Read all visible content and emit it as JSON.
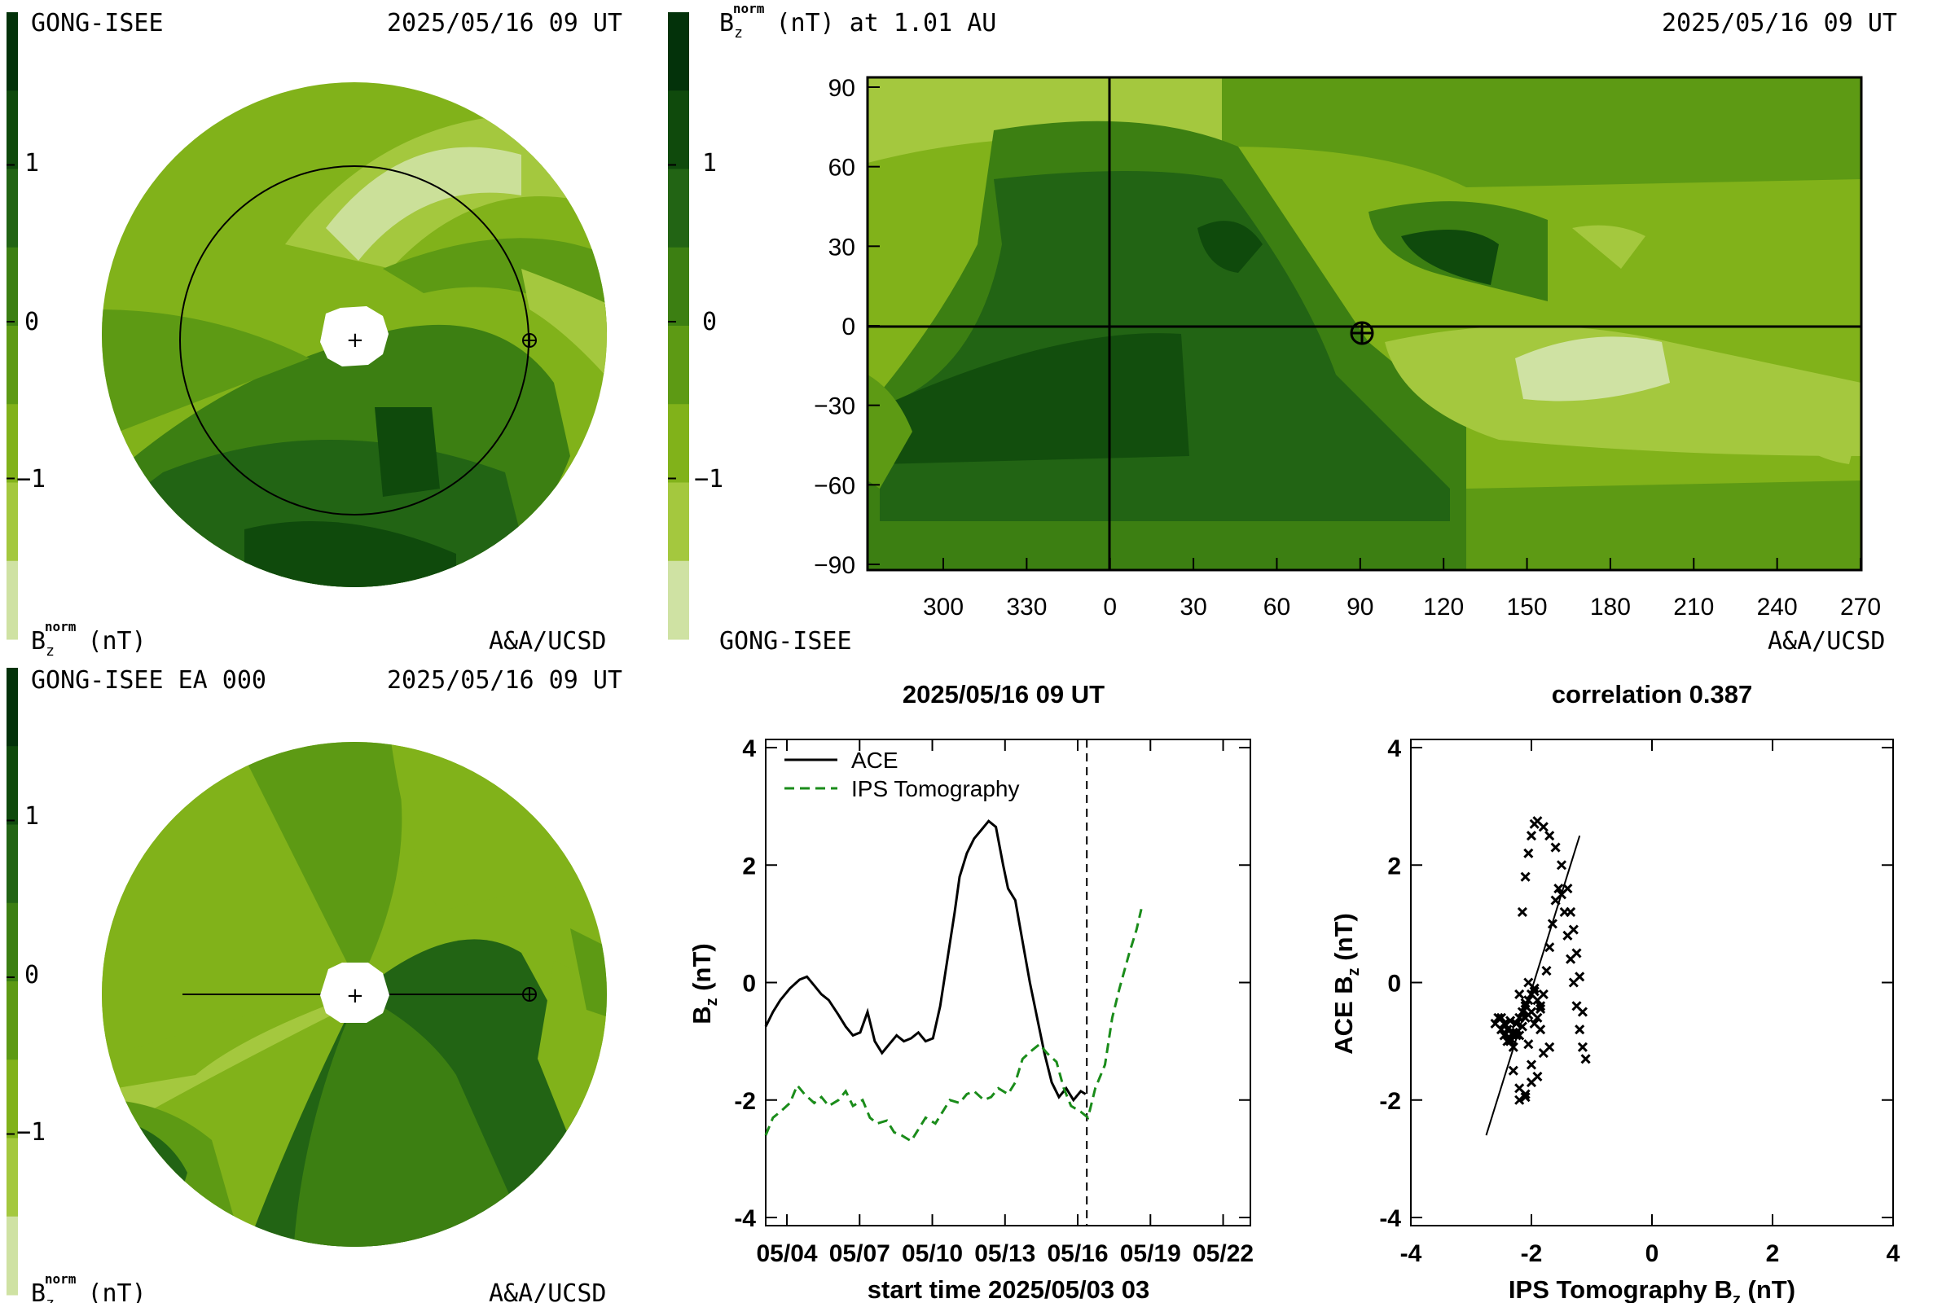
{
  "colors": {
    "c0": "#cfe2a3",
    "c1": "#a4c83e",
    "c2": "#81b21a",
    "c3": "#5d9a14",
    "c4": "#3c7f12",
    "c5": "#226414",
    "c6": "#0f4a0c",
    "c7": "#03320a",
    "ace": "#000000",
    "ips": "#1a8c1a"
  },
  "panel_tl": {
    "source": "GONG-ISEE",
    "timestamp": "2025/05/16 09 UT",
    "colorbar_label_base": "B",
    "colorbar_label_sub": "z",
    "colorbar_label_sup": "norm",
    "colorbar_label_unit": "(nT)",
    "credit": "A&A/UCSD",
    "ticks": [
      "1",
      "0",
      "−1"
    ]
  },
  "panel_tr": {
    "title_base": "B",
    "title_sub": "z",
    "title_sup": "norm",
    "title_rest": "(nT) at 1.01 AU",
    "timestamp": "2025/05/16 09 UT",
    "source": "GONG-ISEE",
    "credit": "A&A/UCSD",
    "colorbar_ticks": [
      "1",
      "0",
      "−1"
    ],
    "yticks": [
      "90",
      "60",
      "30",
      "0",
      "−30",
      "−60",
      "−90"
    ],
    "xticks": [
      "300",
      "330",
      "0",
      "30",
      "60",
      "90",
      "120",
      "150",
      "180",
      "210",
      "240",
      "270"
    ]
  },
  "panel_bl": {
    "source": "GONG-ISEE EA 000",
    "timestamp": "2025/05/16 09 UT",
    "colorbar_label_base": "B",
    "colorbar_label_sub": "z",
    "colorbar_label_sup": "norm",
    "colorbar_label_unit": "(nT)",
    "credit": "A&A/UCSD",
    "ticks": [
      "1",
      "0",
      "−1"
    ]
  },
  "chart_data": [
    {
      "type": "line",
      "title": "2025/05/16 09 UT",
      "xlabel": "start time 2025/05/03 03",
      "ylabel_base": "B",
      "ylabel_sub": "z",
      "ylabel_rest": " (nT)",
      "xlim": [
        0,
        20
      ],
      "ylim": [
        -4,
        4
      ],
      "xticks": [
        "05/04",
        "05/07",
        "05/10",
        "05/13",
        "05/16",
        "05/19",
        "05/22"
      ],
      "xtick_values": [
        0.875,
        3.875,
        6.875,
        9.875,
        12.875,
        15.875,
        18.875
      ],
      "yticks": [
        -4,
        -2,
        0,
        2,
        4
      ],
      "current_time_marker": 13.25,
      "series": [
        {
          "name": "ACE",
          "style": "solid",
          "x": [
            0.0,
            0.3,
            0.6,
            1.0,
            1.4,
            1.7,
            2.0,
            2.3,
            2.6,
            3.0,
            3.3,
            3.6,
            3.9,
            4.2,
            4.5,
            4.8,
            5.1,
            5.4,
            5.7,
            6.0,
            6.3,
            6.6,
            6.9,
            7.2,
            7.5,
            7.8,
            8.0,
            8.3,
            8.6,
            8.9,
            9.2,
            9.5,
            9.8,
            10.0,
            10.3,
            10.6,
            10.9,
            11.2,
            11.5,
            11.8,
            12.1,
            12.4,
            12.7,
            13.0,
            13.2
          ],
          "y": [
            -0.75,
            -0.5,
            -0.3,
            -0.1,
            0.05,
            0.1,
            -0.05,
            -0.2,
            -0.3,
            -0.55,
            -0.75,
            -0.9,
            -0.85,
            -0.5,
            -1.0,
            -1.2,
            -1.05,
            -0.9,
            -1.0,
            -0.95,
            -0.85,
            -1.0,
            -0.95,
            -0.4,
            0.4,
            1.2,
            1.8,
            2.2,
            2.45,
            2.6,
            2.75,
            2.65,
            2.0,
            1.6,
            1.4,
            0.7,
            0.0,
            -0.6,
            -1.2,
            -1.7,
            -1.95,
            -1.8,
            -2.0,
            -1.85,
            -1.9
          ]
        },
        {
          "name": "IPS Tomography",
          "style": "dashed",
          "x": [
            0.0,
            0.3,
            0.6,
            1.0,
            1.3,
            1.6,
            2.0,
            2.3,
            2.6,
            3.0,
            3.3,
            3.6,
            4.0,
            4.3,
            4.6,
            5.0,
            5.3,
            5.6,
            6.0,
            6.3,
            6.6,
            7.0,
            7.3,
            7.6,
            8.0,
            8.3,
            8.6,
            9.0,
            9.3,
            9.6,
            10.0,
            10.3,
            10.6,
            11.0,
            11.3,
            11.6,
            12.0,
            12.3,
            12.6,
            13.0,
            13.3,
            13.6,
            14.0,
            14.3,
            14.6,
            15.0,
            15.3,
            15.5
          ],
          "y": [
            -2.6,
            -2.3,
            -2.2,
            -2.05,
            -1.75,
            -1.9,
            -2.05,
            -1.95,
            -2.1,
            -2.0,
            -1.85,
            -2.1,
            -2.0,
            -2.3,
            -2.4,
            -2.35,
            -2.55,
            -2.6,
            -2.7,
            -2.5,
            -2.3,
            -2.4,
            -2.2,
            -2.0,
            -2.05,
            -1.9,
            -1.85,
            -2.0,
            -1.95,
            -1.8,
            -1.9,
            -1.7,
            -1.3,
            -1.15,
            -1.05,
            -1.2,
            -1.35,
            -1.8,
            -2.1,
            -2.2,
            -2.3,
            -1.8,
            -1.4,
            -0.6,
            -0.1,
            0.5,
            0.9,
            1.25
          ]
        }
      ]
    },
    {
      "type": "scatter",
      "title": "correlation 0.387",
      "xlabel_base": "IPS Tomography B",
      "xlabel_sub": "z",
      "xlabel_rest": " (nT)",
      "ylabel_base": "ACE B",
      "ylabel_sub": "z",
      "ylabel_rest": " (nT)",
      "xlim": [
        -4,
        4
      ],
      "ylim": [
        -4,
        4
      ],
      "xticks": [
        -4,
        -2,
        0,
        2,
        4
      ],
      "yticks": [
        -4,
        -2,
        0,
        2,
        4
      ],
      "fit_line": {
        "x": [
          -2.75,
          -1.2
        ],
        "y": [
          -2.6,
          2.5
        ]
      },
      "points": {
        "x": [
          -2.6,
          -2.55,
          -2.5,
          -2.45,
          -2.4,
          -2.35,
          -2.3,
          -2.25,
          -2.2,
          -2.15,
          -2.1,
          -2.05,
          -2.0,
          -1.95,
          -1.9,
          -1.85,
          -1.8,
          -1.75,
          -1.7,
          -1.65,
          -1.6,
          -1.55,
          -1.5,
          -1.45,
          -1.4,
          -1.35,
          -1.3,
          -1.25,
          -1.2,
          -1.15,
          -1.1,
          -1.15,
          -1.2,
          -1.25,
          -1.3,
          -1.35,
          -1.4,
          -1.5,
          -1.6,
          -1.7,
          -1.8,
          -1.9,
          -1.95,
          -2.0,
          -2.05,
          -2.1,
          -2.15,
          -2.2,
          -2.25,
          -2.3,
          -2.35,
          -2.4,
          -2.45,
          -2.5,
          -2.3,
          -2.2,
          -2.1,
          -2.0,
          -1.9,
          -2.0,
          -2.1,
          -2.2,
          -2.0,
          -2.05,
          -1.95,
          -1.9,
          -1.85,
          -2.1,
          -2.15,
          -2.2,
          -2.05,
          -1.8,
          -1.7,
          -2.25,
          -2.35,
          -2.1,
          -1.95,
          -2.05,
          -1.85
        ],
        "y": [
          -0.7,
          -0.6,
          -0.8,
          -0.9,
          -1.0,
          -0.95,
          -0.85,
          -0.7,
          -0.6,
          -0.5,
          -0.4,
          -0.3,
          -0.5,
          -0.7,
          -0.6,
          -0.4,
          -0.2,
          0.2,
          0.6,
          1.0,
          1.4,
          1.6,
          1.5,
          1.2,
          0.8,
          0.4,
          0.0,
          -0.4,
          -0.8,
          -1.1,
          -1.3,
          -0.5,
          0.1,
          0.5,
          0.9,
          1.2,
          1.6,
          2.0,
          2.3,
          2.5,
          2.65,
          2.75,
          2.7,
          2.5,
          2.2,
          1.8,
          1.2,
          -0.2,
          -0.9,
          -1.1,
          -1.0,
          -0.8,
          -0.7,
          -0.6,
          -1.5,
          -1.8,
          -1.9,
          -1.7,
          -1.6,
          -1.4,
          -1.95,
          -2.0,
          -0.2,
          0.0,
          -0.1,
          -0.3,
          -0.45,
          -0.6,
          -0.75,
          -0.9,
          -1.05,
          -1.2,
          -1.1,
          -0.85,
          -0.65,
          -0.35,
          -0.15,
          -0.55,
          -0.8
        ]
      },
      "legend": []
    }
  ]
}
